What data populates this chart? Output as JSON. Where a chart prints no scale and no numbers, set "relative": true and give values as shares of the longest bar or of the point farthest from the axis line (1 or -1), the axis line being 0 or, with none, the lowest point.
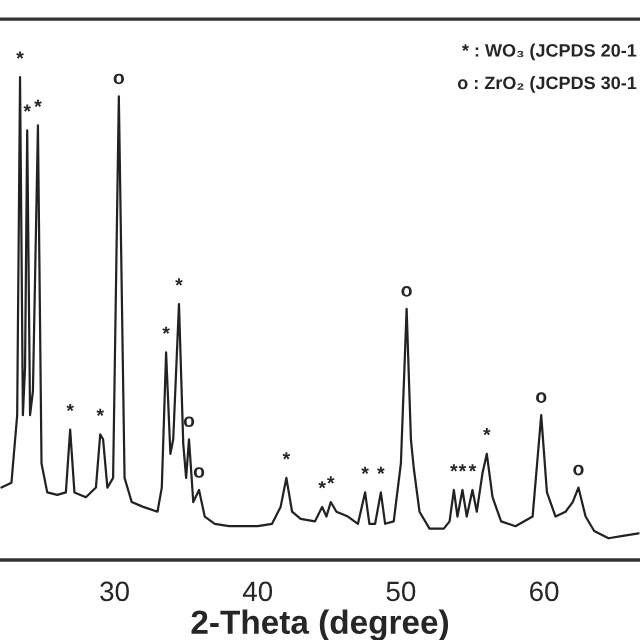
{
  "chart_data": {
    "type": "line",
    "relative": true,
    "xlabel": "2-Theta (degree)",
    "xlim": [
      22,
      66.7
    ],
    "xticks": [
      30,
      40,
      50,
      60
    ],
    "grid": false,
    "marker": "none",
    "line_style": "solid",
    "series": [
      {
        "color": "#222222",
        "x": [
          22.1,
          22.8,
          23.2,
          23.4,
          23.6,
          23.75,
          23.9,
          24.1,
          24.3,
          24.65,
          24.9,
          25.3,
          26.0,
          26.6,
          26.9,
          27.2,
          28.0,
          28.7,
          29.0,
          29.2,
          29.5,
          29.9,
          30.3,
          30.7,
          31.2,
          32.0,
          33.0,
          33.3,
          33.6,
          33.9,
          34.1,
          34.5,
          34.8,
          35.0,
          35.2,
          35.5,
          35.9,
          36.3,
          37,
          38,
          39,
          40,
          41,
          41.6,
          42.0,
          42.4,
          43,
          44,
          44.5,
          44.8,
          45.1,
          45.5,
          46.3,
          47,
          47.5,
          47.8,
          48.2,
          48.6,
          48.9,
          49.5,
          50.0,
          50.4,
          50.7,
          50.9,
          51.3,
          52,
          53,
          53.4,
          53.7,
          53.95,
          54.3,
          54.6,
          55.0,
          55.3,
          55.7,
          56.0,
          56.4,
          57,
          58,
          59.2,
          59.8,
          60.2,
          60.8,
          61.5,
          62.0,
          62.4,
          62.9,
          63.5,
          64.5,
          65.5,
          66.6
        ],
        "values": [
          0.15,
          0.16,
          0.3,
          1.0,
          0.3,
          0.4,
          0.89,
          0.3,
          0.35,
          0.9,
          0.2,
          0.14,
          0.135,
          0.14,
          0.27,
          0.14,
          0.13,
          0.15,
          0.26,
          0.25,
          0.15,
          0.17,
          0.96,
          0.17,
          0.12,
          0.11,
          0.1,
          0.15,
          0.43,
          0.22,
          0.25,
          0.53,
          0.24,
          0.17,
          0.25,
          0.12,
          0.145,
          0.09,
          0.075,
          0.07,
          0.07,
          0.07,
          0.075,
          0.11,
          0.17,
          0.1,
          0.085,
          0.08,
          0.11,
          0.09,
          0.12,
          0.1,
          0.09,
          0.075,
          0.14,
          0.075,
          0.075,
          0.14,
          0.075,
          0.08,
          0.2,
          0.52,
          0.25,
          0.19,
          0.1,
          0.065,
          0.065,
          0.08,
          0.145,
          0.09,
          0.145,
          0.09,
          0.145,
          0.1,
          0.18,
          0.22,
          0.13,
          0.08,
          0.07,
          0.09,
          0.3,
          0.14,
          0.09,
          0.1,
          0.12,
          0.15,
          0.09,
          0.06,
          0.045,
          0.05,
          0.055
        ]
      }
    ],
    "annotations": [
      "* : WO₃ (JCPDS 20-1",
      "o : ZrO₂ (JCPDS 30-1",
      {
        "text": "*",
        "x": 23.4,
        "y": 1.0
      },
      {
        "text": "*",
        "x": 23.9,
        "y": 0.89
      },
      {
        "text": "*",
        "x": 24.65,
        "y": 0.9
      },
      {
        "text": "o",
        "x": 30.3,
        "y": 0.96
      },
      {
        "text": "*",
        "x": 26.9,
        "y": 0.27
      },
      {
        "text": "*",
        "x": 29.0,
        "y": 0.26
      },
      {
        "text": "*",
        "x": 33.6,
        "y": 0.43
      },
      {
        "text": "*",
        "x": 34.5,
        "y": 0.53
      },
      {
        "text": "o",
        "x": 35.2,
        "y": 0.25
      },
      {
        "text": "o",
        "x": 35.9,
        "y": 0.145
      },
      {
        "text": "*",
        "x": 42.0,
        "y": 0.17
      },
      {
        "text": "*",
        "x": 44.5,
        "y": 0.11
      },
      {
        "text": "*",
        "x": 45.1,
        "y": 0.12
      },
      {
        "text": "*",
        "x": 47.5,
        "y": 0.14
      },
      {
        "text": "*",
        "x": 48.6,
        "y": 0.14
      },
      {
        "text": "o",
        "x": 50.4,
        "y": 0.52
      },
      {
        "text": "*",
        "x": 53.7,
        "y": 0.145
      },
      {
        "text": "*",
        "x": 54.3,
        "y": 0.145
      },
      {
        "text": "*",
        "x": 55.0,
        "y": 0.145
      },
      {
        "text": "*",
        "x": 56.0,
        "y": 0.22
      },
      {
        "text": "o",
        "x": 59.8,
        "y": 0.3
      },
      {
        "text": "o",
        "x": 62.4,
        "y": 0.15
      }
    ]
  }
}
